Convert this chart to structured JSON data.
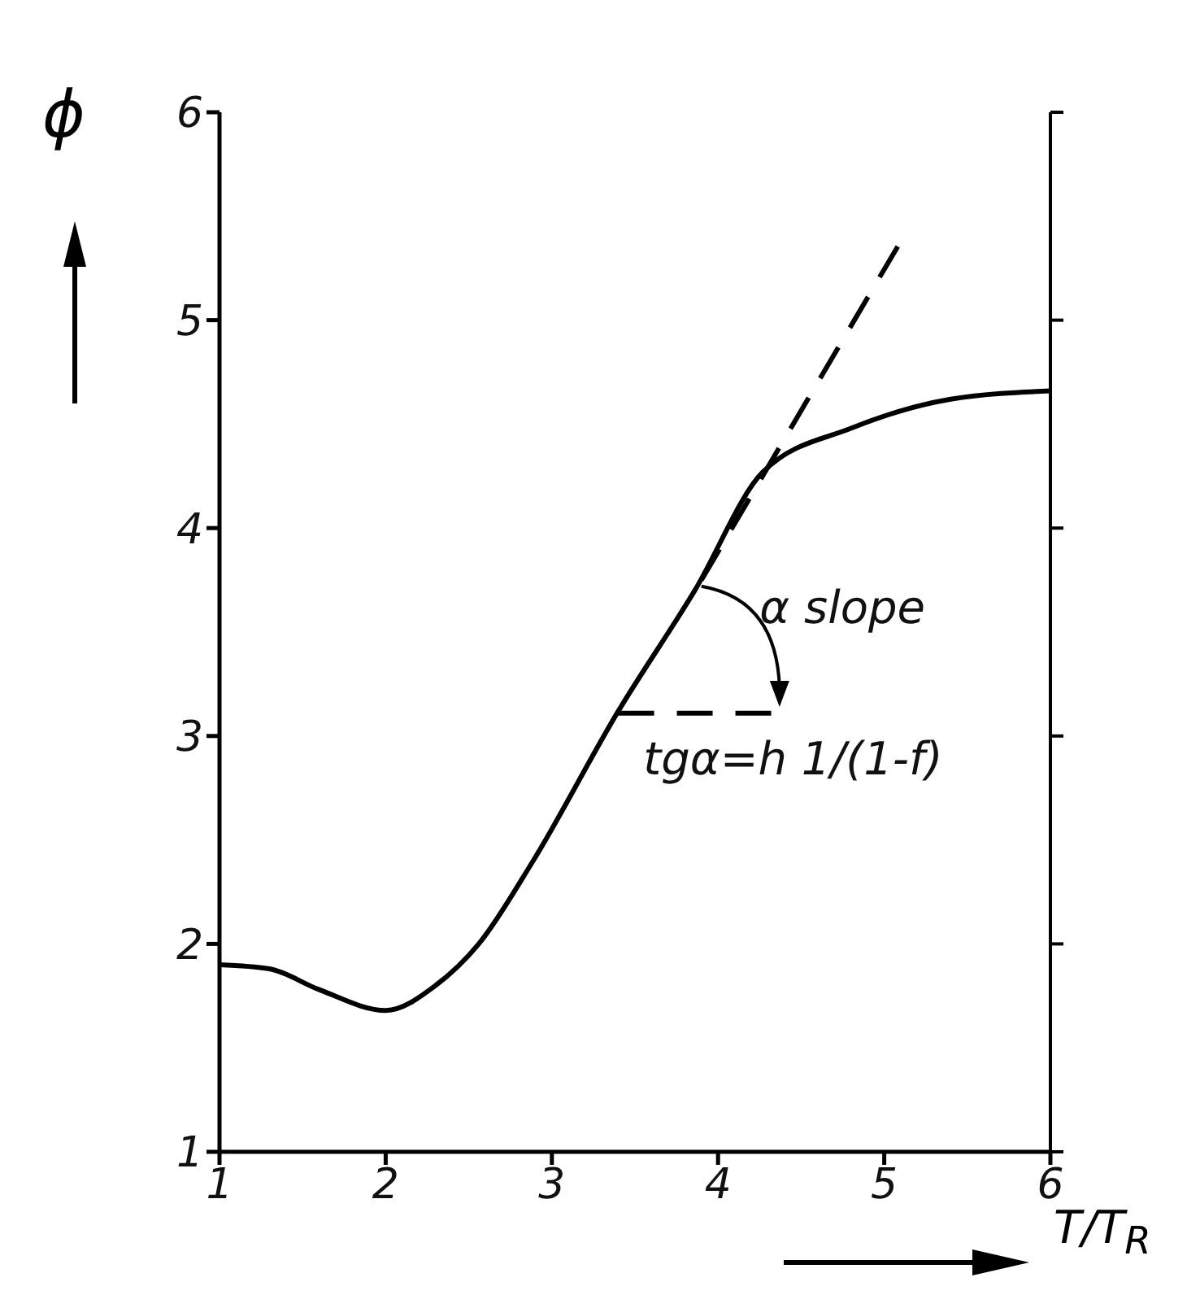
{
  "chart_data": {
    "type": "line",
    "xlabel": "T/T$_{R}$",
    "ylabel": "ϕ",
    "xlim": [
      1,
      6
    ],
    "ylim": [
      1,
      6
    ],
    "xticks": [
      1,
      2,
      3,
      4,
      5,
      6
    ],
    "yticks": [
      1,
      2,
      3,
      4,
      5,
      6
    ],
    "marker": "none",
    "annotations": [
      "α slope",
      "tgα=h 1/(1-f)"
    ],
    "series": [
      {
        "color": "#000000",
        "line_style": "solid",
        "x": [
          1,
          1.3,
          1.6,
          2,
          2.3,
          2.56,
          2.88,
          3.4,
          3.86,
          4.27,
          4.8,
          5.4,
          6
        ],
        "values": [
          1.9,
          1.88,
          1.78,
          1.68,
          1.8,
          2.0,
          2.39,
          3.12,
          3.7,
          4.27,
          4.48,
          4.62,
          4.66
        ]
      },
      {
        "color": "#000000",
        "line_style": "dashed",
        "x": [
          3.9,
          5.1
        ],
        "values": [
          3.75,
          5.38
        ]
      },
      {
        "color": "#000000",
        "line_style": "dashed",
        "x": [
          3.4,
          4.4
        ],
        "values": [
          3.11,
          3.11
        ]
      }
    ]
  }
}
